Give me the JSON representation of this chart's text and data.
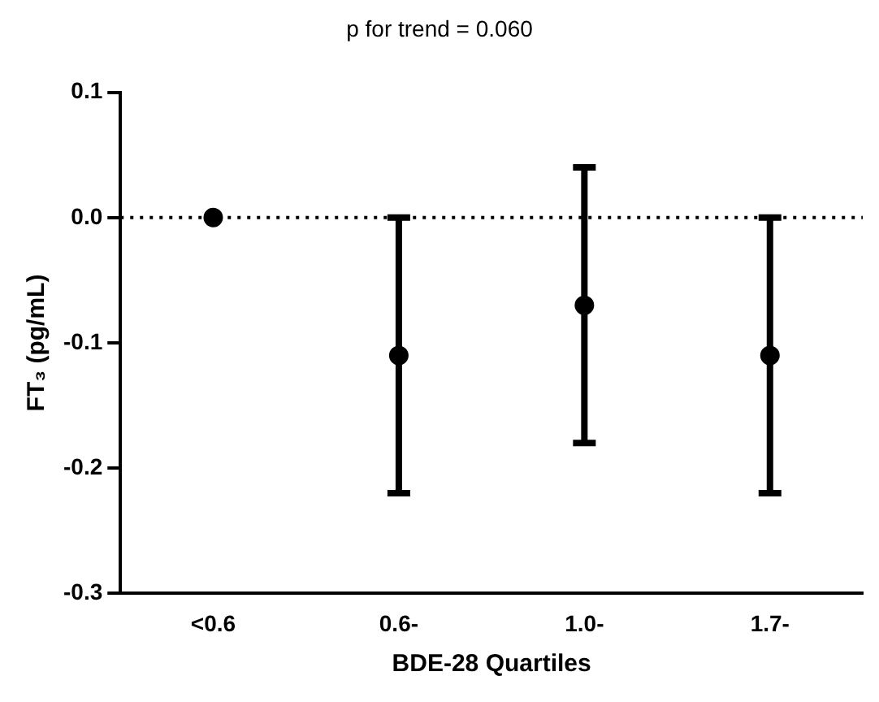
{
  "chart_data": {
    "type": "scatter",
    "title": "p for trend = 0.060",
    "xlabel": "BDE-28 Quartiles",
    "ylabel": "FT₃ (pg/mL)",
    "categories": [
      "<0.6",
      "0.6-",
      "1.0-",
      "1.7-"
    ],
    "values": [
      0,
      -0.11,
      -0.07,
      -0.11
    ],
    "errors": [
      null,
      [
        -0.22,
        0
      ],
      [
        -0.18,
        0.04
      ],
      [
        -0.22,
        0
      ]
    ],
    "color": "#000000",
    "marker": "circle",
    "grid": false,
    "legend": false,
    "ylim": [
      -0.3,
      0.1
    ],
    "yticks": [
      {
        "value": -0.3,
        "label": "-0.3"
      },
      {
        "value": -0.2,
        "label": "-0.2"
      },
      {
        "value": -0.1,
        "label": "-0.1"
      },
      {
        "value": 0,
        "label": "0.0"
      },
      {
        "value": 0.1,
        "label": "0.1"
      }
    ],
    "ref_lines": [
      {
        "axis": "y",
        "value": 0,
        "label": null,
        "line_style": "dotted"
      }
    ]
  }
}
